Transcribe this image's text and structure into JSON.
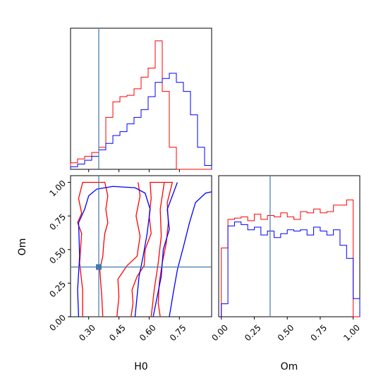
{
  "chart_data": [
    {
      "id": "h0_marginal",
      "type": "histogram",
      "title": "",
      "xlabel": "",
      "ylabel": "",
      "xlim": [
        0.21,
        0.91
      ],
      "ylim": [
        0,
        1
      ],
      "bins_edges": [
        0.21,
        0.245,
        0.28,
        0.315,
        0.35,
        0.385,
        0.42,
        0.455,
        0.49,
        0.525,
        0.56,
        0.595,
        0.63,
        0.665,
        0.7,
        0.735,
        0.77,
        0.805,
        0.84,
        0.875,
        0.91
      ],
      "truth_x": 0.35,
      "series": [
        {
          "color": "#ff0000",
          "values": [
            0.05,
            0.08,
            0.1,
            0.13,
            0.17,
            0.4,
            0.52,
            0.56,
            0.57,
            0.62,
            0.71,
            0.78,
            0.99,
            0.6,
            0.17,
            0.0,
            0.0,
            0.0,
            0.0,
            0.0
          ]
        },
        {
          "color": "#0000ff",
          "values": [
            0.02,
            0.04,
            0.07,
            0.1,
            0.15,
            0.2,
            0.26,
            0.29,
            0.35,
            0.4,
            0.46,
            0.56,
            0.67,
            0.7,
            0.74,
            0.67,
            0.6,
            0.42,
            0.17,
            0.03
          ]
        }
      ],
      "x_ticks": [
        "",
        "",
        "",
        ""
      ]
    },
    {
      "id": "om_marginal",
      "type": "histogram",
      "title": "",
      "xlabel": "Om",
      "ylabel": "",
      "xlim": [
        -0.02,
        1.05
      ],
      "ylim": [
        0,
        1
      ],
      "bins_edges": [
        0.0,
        0.05,
        0.1,
        0.15,
        0.2,
        0.25,
        0.3,
        0.35,
        0.4,
        0.45,
        0.5,
        0.55,
        0.6,
        0.65,
        0.7,
        0.75,
        0.8,
        0.85,
        0.9,
        0.95,
        1.0,
        1.05
      ],
      "truth_x": 0.37,
      "series": [
        {
          "color": "#ff0000",
          "values": [
            0.53,
            0.75,
            0.76,
            0.77,
            0.74,
            0.79,
            0.75,
            0.78,
            0.77,
            0.8,
            0.77,
            0.75,
            0.81,
            0.8,
            0.83,
            0.8,
            0.81,
            0.86,
            0.86,
            0.9,
            0.0
          ]
        },
        {
          "color": "#0000ff",
          "values": [
            0.1,
            0.7,
            0.73,
            0.71,
            0.67,
            0.69,
            0.63,
            0.66,
            0.61,
            0.64,
            0.67,
            0.66,
            0.67,
            0.63,
            0.69,
            0.66,
            0.63,
            0.67,
            0.55,
            0.45,
            0.14
          ]
        }
      ],
      "x_ticks": [
        "0.00",
        "0.25",
        "0.50",
        "0.75",
        "1.00"
      ],
      "x_tick_values": [
        0.0,
        0.25,
        0.5,
        0.75,
        1.0
      ]
    },
    {
      "id": "h0_om_contour",
      "type": "contour",
      "title": "",
      "xlabel": "H0",
      "ylabel": "Om",
      "xlim": [
        0.21,
        0.91
      ],
      "ylim": [
        0.0,
        1.05
      ],
      "x_ticks": [
        "0.30",
        "0.45",
        "0.60",
        "0.75"
      ],
      "x_tick_values": [
        0.3,
        0.45,
        0.6,
        0.75
      ],
      "y_ticks": [
        "0.00",
        "0.25",
        "0.50",
        "0.75",
        "1.00"
      ],
      "y_tick_values": [
        0.0,
        0.25,
        0.5,
        0.75,
        1.0
      ],
      "truth": [
        0.35,
        0.37
      ],
      "contours": [
        {
          "color": "#ff0000",
          "points": [
            [
              0.27,
              0.0
            ],
            [
              0.27,
              0.2
            ],
            [
              0.255,
              0.4
            ],
            [
              0.265,
              0.62
            ],
            [
              0.245,
              0.7
            ],
            [
              0.265,
              0.77
            ],
            [
              0.25,
              0.88
            ],
            [
              0.27,
              1.0
            ],
            [
              0.38,
              1.0
            ],
            [
              0.395,
              0.9
            ],
            [
              0.385,
              0.8
            ],
            [
              0.395,
              0.7
            ],
            [
              0.38,
              0.62
            ],
            [
              0.375,
              0.55
            ],
            [
              0.37,
              0.45
            ],
            [
              0.355,
              0.35
            ],
            [
              0.36,
              0.25
            ],
            [
              0.365,
              0.15
            ],
            [
              0.37,
              0.0
            ]
          ]
        },
        {
          "color": "#ff0000",
          "points": [
            [
              0.51,
              0.0
            ],
            [
              0.52,
              0.1
            ],
            [
              0.515,
              0.2
            ],
            [
              0.54,
              0.3
            ],
            [
              0.575,
              0.38
            ],
            [
              0.58,
              0.5
            ],
            [
              0.61,
              0.62
            ],
            [
              0.6,
              0.75
            ],
            [
              0.61,
              0.88
            ],
            [
              0.605,
              1.0
            ],
            [
              0.715,
              1.0
            ],
            [
              0.69,
              0.85
            ],
            [
              0.695,
              0.7
            ],
            [
              0.685,
              0.55
            ],
            [
              0.665,
              0.4
            ],
            [
              0.65,
              0.25
            ],
            [
              0.645,
              0.1
            ],
            [
              0.655,
              0.0
            ]
          ]
        },
        {
          "color": "#ff0000",
          "points": [
            [
              0.44,
              0.0
            ],
            [
              0.45,
              0.15
            ],
            [
              0.445,
              0.28
            ],
            [
              0.49,
              0.38
            ],
            [
              0.54,
              0.45
            ],
            [
              0.555,
              0.6
            ],
            [
              0.535,
              0.75
            ],
            [
              0.555,
              0.9
            ],
            [
              0.545,
              1.0
            ]
          ]
        },
        {
          "color": "#ff0000",
          "points": [
            [
              0.61,
              0.0
            ],
            [
              0.625,
              0.2
            ],
            [
              0.645,
              0.4
            ],
            [
              0.66,
              0.6
            ],
            [
              0.655,
              0.8
            ],
            [
              0.675,
              1.0
            ]
          ]
        },
        {
          "color": "#0000ff",
          "points": [
            [
              0.25,
              0.0
            ],
            [
              0.245,
              0.2
            ],
            [
              0.255,
              0.45
            ],
            [
              0.25,
              0.7
            ],
            [
              0.28,
              0.8
            ],
            [
              0.3,
              0.9
            ],
            [
              0.34,
              0.95
            ],
            [
              0.42,
              0.97
            ],
            [
              0.53,
              0.96
            ],
            [
              0.58,
              0.92
            ],
            [
              0.605,
              0.8
            ],
            [
              0.59,
              0.62
            ],
            [
              0.57,
              0.45
            ],
            [
              0.55,
              0.3
            ],
            [
              0.54,
              0.15
            ],
            [
              0.53,
              0.0
            ]
          ]
        },
        {
          "color": "#0000ff",
          "points": [
            [
              0.62,
              0.0
            ],
            [
              0.64,
              0.15
            ],
            [
              0.66,
              0.3
            ],
            [
              0.67,
              0.5
            ],
            [
              0.7,
              0.65
            ],
            [
              0.69,
              0.8
            ],
            [
              0.72,
              0.92
            ],
            [
              0.74,
              1.0
            ]
          ]
        },
        {
          "color": "#0000ff",
          "points": [
            [
              0.7,
              0.0
            ],
            [
              0.72,
              0.18
            ],
            [
              0.74,
              0.35
            ],
            [
              0.77,
              0.52
            ],
            [
              0.8,
              0.7
            ],
            [
              0.83,
              0.85
            ],
            [
              0.88,
              0.92
            ],
            [
              0.91,
              0.93
            ]
          ]
        }
      ]
    }
  ]
}
